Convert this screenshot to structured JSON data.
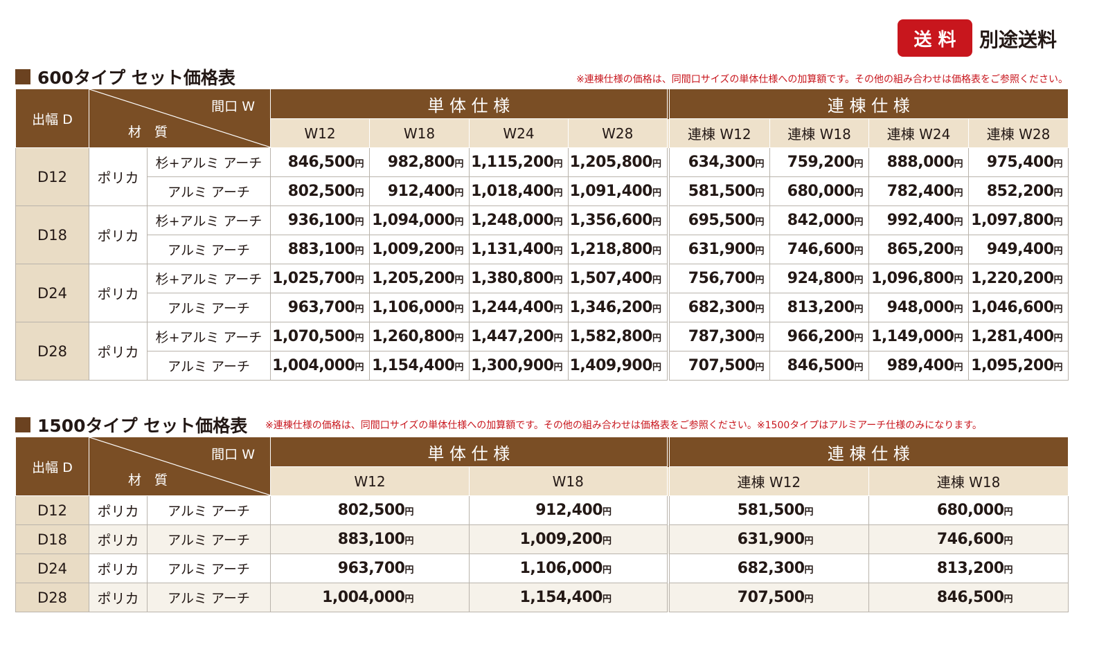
{
  "shipping": {
    "badge": "送 料",
    "text": "別途送料"
  },
  "unit": "円",
  "tables": [
    {
      "title": "600タイプ セット価格表",
      "note": "※連棟仕様の価格は、同間口サイズの単体仕様への加算額です。その他の組み合わせは価格表をご参照ください。",
      "header": {
        "depth": "出幅 D",
        "width": "間口 W",
        "material": "材　質",
        "groups": [
          "単 体 仕 様",
          "連 棟 仕 様"
        ],
        "columns": [
          "W12",
          "W18",
          "W24",
          "W28",
          "連棟 W12",
          "連棟 W18",
          "連棟 W24",
          "連棟 W28"
        ]
      },
      "rows": [
        {
          "depth": "D12",
          "material": "ポリカ",
          "variants": [
            {
              "frame": "杉+アルミ アーチ",
              "prices": [
                "846,500",
                "982,800",
                "1,115,200",
                "1,205,800",
                "634,300",
                "759,200",
                "888,000",
                "975,400"
              ]
            },
            {
              "frame": "アルミ アーチ",
              "prices": [
                "802,500",
                "912,400",
                "1,018,400",
                "1,091,400",
                "581,500",
                "680,000",
                "782,400",
                "852,200"
              ]
            }
          ]
        },
        {
          "depth": "D18",
          "material": "ポリカ",
          "variants": [
            {
              "frame": "杉+アルミ アーチ",
              "prices": [
                "936,100",
                "1,094,000",
                "1,248,000",
                "1,356,600",
                "695,500",
                "842,000",
                "992,400",
                "1,097,800"
              ]
            },
            {
              "frame": "アルミ アーチ",
              "prices": [
                "883,100",
                "1,009,200",
                "1,131,400",
                "1,218,800",
                "631,900",
                "746,600",
                "865,200",
                "949,400"
              ]
            }
          ]
        },
        {
          "depth": "D24",
          "material": "ポリカ",
          "variants": [
            {
              "frame": "杉+アルミ アーチ",
              "prices": [
                "1,025,700",
                "1,205,200",
                "1,380,800",
                "1,507,400",
                "756,700",
                "924,800",
                "1,096,800",
                "1,220,200"
              ]
            },
            {
              "frame": "アルミ アーチ",
              "prices": [
                "963,700",
                "1,106,000",
                "1,244,400",
                "1,346,200",
                "682,300",
                "813,200",
                "948,000",
                "1,046,600"
              ]
            }
          ]
        },
        {
          "depth": "D28",
          "material": "ポリカ",
          "variants": [
            {
              "frame": "杉+アルミ アーチ",
              "prices": [
                "1,070,500",
                "1,260,800",
                "1,447,200",
                "1,582,800",
                "787,300",
                "966,200",
                "1,149,000",
                "1,281,400"
              ]
            },
            {
              "frame": "アルミ アーチ",
              "prices": [
                "1,004,000",
                "1,154,400",
                "1,300,900",
                "1,409,900",
                "707,500",
                "846,500",
                "989,400",
                "1,095,200"
              ]
            }
          ]
        }
      ]
    },
    {
      "title": "1500タイプ セット価格表",
      "note": "※連棟仕様の価格は、同間口サイズの単体仕様への加算額です。その他の組み合わせは価格表をご参照ください。※1500タイプはアルミアーチ仕様のみになります。",
      "header": {
        "depth": "出幅 D",
        "width": "間口 W",
        "material": "材　質",
        "groups": [
          "単 体 仕 様",
          "連 棟 仕 様"
        ],
        "columns": [
          "W12",
          "W18",
          "連棟 W12",
          "連棟 W18"
        ]
      },
      "rows": [
        {
          "depth": "D12",
          "material": "ポリカ",
          "variants": [
            {
              "frame": "アルミ アーチ",
              "prices": [
                "802,500",
                "912,400",
                "581,500",
                "680,000"
              ]
            }
          ]
        },
        {
          "depth": "D18",
          "material": "ポリカ",
          "variants": [
            {
              "frame": "アルミ アーチ",
              "prices": [
                "883,100",
                "1,009,200",
                "631,900",
                "746,600"
              ]
            }
          ]
        },
        {
          "depth": "D24",
          "material": "ポリカ",
          "variants": [
            {
              "frame": "アルミ アーチ",
              "prices": [
                "963,700",
                "1,106,000",
                "682,300",
                "813,200"
              ]
            }
          ]
        },
        {
          "depth": "D28",
          "material": "ポリカ",
          "variants": [
            {
              "frame": "アルミ アーチ",
              "prices": [
                "1,004,000",
                "1,154,400",
                "707,500",
                "846,500"
              ]
            }
          ]
        }
      ]
    }
  ]
}
